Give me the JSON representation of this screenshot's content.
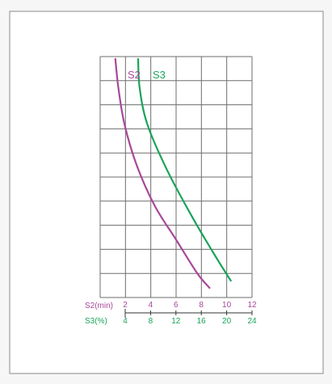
{
  "colors": {
    "s2": "#a8489a",
    "s3": "#1aa35a",
    "grid": "#6e6e6e",
    "frame": "#8a8a8a",
    "panel": "#ffffff"
  },
  "chart_data": {
    "type": "line",
    "grid": true,
    "grid_columns": 6,
    "grid_rows": 10,
    "series": [
      {
        "name": "S2",
        "axis": "S2(min)",
        "x": [
          3.0,
          3.2,
          3.6,
          4.4,
          5.6,
          7.0,
          8.4,
          9.2
        ],
        "y": [
          0.99,
          0.87,
          0.72,
          0.55,
          0.38,
          0.24,
          0.1,
          0.04
        ]
      },
      {
        "name": "S3",
        "axis": "S3(%)",
        "x": [
          9.0,
          9.2,
          10.2,
          12.8,
          16.2,
          19.4,
          21.2
        ],
        "y": [
          0.99,
          0.87,
          0.72,
          0.53,
          0.33,
          0.16,
          0.07
        ]
      }
    ],
    "x_axes": [
      {
        "label": "S2(min)",
        "ticks": [
          "2",
          "4",
          "6",
          "8",
          "10",
          "12"
        ],
        "range": [
          2,
          12
        ],
        "color": "#a8489a"
      },
      {
        "label": "S3(%)",
        "ticks": [
          "4",
          "8",
          "12",
          "16",
          "20",
          "24"
        ],
        "range": [
          4,
          24
        ],
        "color": "#1aa35a"
      }
    ],
    "series_labels": [
      "S2",
      "S3"
    ]
  }
}
